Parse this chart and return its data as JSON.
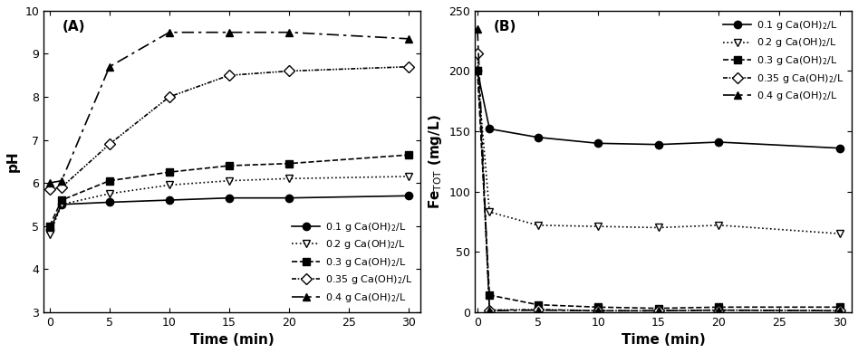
{
  "panel_A": {
    "label": "(A)",
    "xlabel": "Time (min)",
    "ylabel": "pH",
    "xlim": [
      -0.5,
      31
    ],
    "ylim": [
      3,
      10
    ],
    "yticks": [
      3,
      4,
      5,
      6,
      7,
      8,
      9,
      10
    ],
    "xticks": [
      0,
      5,
      10,
      15,
      20,
      25,
      30
    ],
    "series": [
      {
        "label": "0.1 g Ca(OH)2/L",
        "x": [
          0,
          1,
          5,
          10,
          15,
          20,
          30
        ],
        "y": [
          4.9,
          5.5,
          5.55,
          5.6,
          5.65,
          5.65,
          5.7
        ],
        "marker": "o",
        "linestyle": "solid",
        "color": "black",
        "fillstyle": "full"
      },
      {
        "label": "0.2 g Ca(OH)2/L",
        "x": [
          0,
          1,
          5,
          10,
          15,
          20,
          30
        ],
        "y": [
          4.8,
          5.5,
          5.75,
          5.95,
          6.05,
          6.1,
          6.15
        ],
        "marker": "v",
        "linestyle": "dotted",
        "color": "black",
        "fillstyle": "none"
      },
      {
        "label": "0.3 g Ca(OH)2/L",
        "x": [
          0,
          1,
          5,
          10,
          15,
          20,
          30
        ],
        "y": [
          5.0,
          5.6,
          6.05,
          6.25,
          6.4,
          6.45,
          6.65
        ],
        "marker": "s",
        "linestyle": "dashed",
        "color": "black",
        "fillstyle": "full"
      },
      {
        "label": "0.35 g Ca(OH)2/L",
        "x": [
          0,
          1,
          5,
          10,
          15,
          20,
          30
        ],
        "y": [
          5.85,
          5.9,
          6.9,
          8.0,
          8.5,
          8.6,
          8.7
        ],
        "marker": "D",
        "linestyle": "dashdot",
        "color": "black",
        "fillstyle": "none"
      },
      {
        "label": "0.4 g Ca(OH)2/L",
        "x": [
          0,
          1,
          5,
          10,
          15,
          20,
          30
        ],
        "y": [
          6.0,
          6.05,
          8.7,
          9.5,
          9.5,
          9.5,
          9.35
        ],
        "marker": "^",
        "linestyle": "longdash",
        "color": "black",
        "fillstyle": "full"
      }
    ]
  },
  "panel_B": {
    "label": "(B)",
    "xlabel": "Time (min)",
    "ylabel": "Fe$_\\mathrm{TOT}$ (mg/L)",
    "xlim": [
      -0.2,
      31
    ],
    "ylim": [
      0,
      250
    ],
    "yticks": [
      0,
      50,
      100,
      150,
      200,
      250
    ],
    "xticks": [
      0,
      5,
      10,
      15,
      20,
      25,
      30
    ],
    "series": [
      {
        "label": "0.1 g Ca(OH)2/L",
        "x": [
          0,
          1,
          5,
          10,
          15,
          20,
          30
        ],
        "y": [
          200,
          152,
          145,
          140,
          139,
          141,
          136
        ],
        "marker": "o",
        "linestyle": "solid",
        "color": "black",
        "fillstyle": "full"
      },
      {
        "label": "0.2 g Ca(OH)2/L",
        "x": [
          0,
          1,
          5,
          10,
          15,
          20,
          30
        ],
        "y": [
          200,
          83,
          72,
          71,
          70,
          72,
          65
        ],
        "marker": "v",
        "linestyle": "dotted",
        "color": "black",
        "fillstyle": "none"
      },
      {
        "label": "0.3 g Ca(OH)2/L",
        "x": [
          0,
          1,
          5,
          10,
          15,
          20,
          30
        ],
        "y": [
          200,
          14,
          6,
          4,
          3,
          4,
          4
        ],
        "marker": "s",
        "linestyle": "dashed",
        "color": "black",
        "fillstyle": "full"
      },
      {
        "label": "0.35 g Ca(OH)2/L",
        "x": [
          0,
          1,
          5,
          10,
          15,
          20,
          30
        ],
        "y": [
          215,
          1.5,
          2,
          1,
          1,
          1.5,
          1
        ],
        "marker": "D",
        "linestyle": "dashdot",
        "color": "black",
        "fillstyle": "none"
      },
      {
        "label": "0.4 g Ca(OH)2/L",
        "x": [
          0,
          1,
          5,
          10,
          15,
          20,
          30
        ],
        "y": [
          235,
          1.0,
          1.5,
          1.0,
          1.0,
          1.5,
          1.0
        ],
        "marker": "^",
        "linestyle": "longdash",
        "color": "black",
        "fillstyle": "full"
      }
    ]
  },
  "legend_labels": [
    "0.1 g Ca(OH)$_2$/L",
    "0.2 g Ca(OH)$_2$/L",
    "0.3 g Ca(OH)$_2$/L",
    "0.35 g Ca(OH)$_2$/L",
    "0.4 g Ca(OH)$_2$/L"
  ]
}
